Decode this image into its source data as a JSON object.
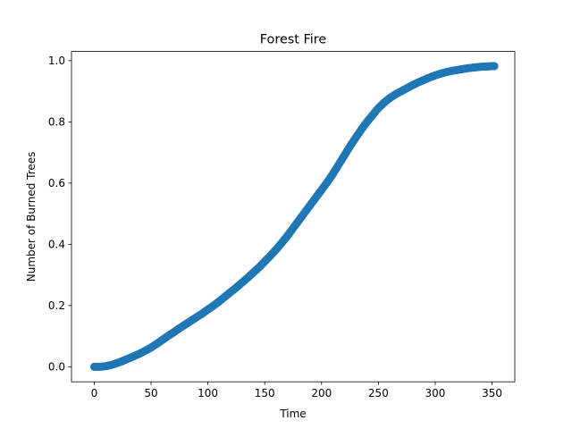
{
  "chart_data": {
    "type": "scatter",
    "title": "Forest Fire",
    "xlabel": "Time",
    "ylabel": "Number of Burned Trees",
    "xlim": [
      -20,
      370
    ],
    "ylim": [
      -0.049,
      1.03
    ],
    "xticks": [
      0,
      50,
      100,
      150,
      200,
      250,
      300,
      350
    ],
    "xtick_labels": [
      "0",
      "50",
      "100",
      "150",
      "200",
      "250",
      "300",
      "350"
    ],
    "yticks": [
      0.0,
      0.2,
      0.4,
      0.6,
      0.8,
      1.0
    ],
    "ytick_labels": [
      "0.0",
      "0.2",
      "0.4",
      "0.6",
      "0.8",
      "1.0"
    ],
    "grid": false,
    "marker_color": "#1f77b4",
    "series": [
      {
        "x": [
          0,
          5,
          10,
          15,
          20,
          25,
          30,
          35,
          40,
          45,
          50,
          55,
          60,
          65,
          70,
          75,
          80,
          85,
          90,
          95,
          100,
          105,
          110,
          115,
          120,
          125,
          130,
          135,
          140,
          145,
          150,
          155,
          160,
          165,
          170,
          175,
          180,
          185,
          190,
          195,
          200,
          205,
          210,
          215,
          220,
          225,
          230,
          235,
          240,
          245,
          250,
          255,
          260,
          265,
          270,
          275,
          280,
          285,
          290,
          295,
          300,
          305,
          310,
          315,
          320,
          325,
          330,
          335,
          340,
          345,
          350,
          352
        ],
        "y": [
          0.0,
          0.0,
          0.002,
          0.006,
          0.012,
          0.019,
          0.027,
          0.035,
          0.043,
          0.053,
          0.063,
          0.075,
          0.088,
          0.101,
          0.113,
          0.126,
          0.138,
          0.15,
          0.162,
          0.174,
          0.187,
          0.2,
          0.214,
          0.229,
          0.244,
          0.259,
          0.275,
          0.291,
          0.308,
          0.325,
          0.344,
          0.363,
          0.383,
          0.405,
          0.428,
          0.453,
          0.478,
          0.503,
          0.528,
          0.553,
          0.578,
          0.603,
          0.63,
          0.66,
          0.69,
          0.72,
          0.748,
          0.775,
          0.8,
          0.823,
          0.845,
          0.863,
          0.878,
          0.89,
          0.9,
          0.91,
          0.92,
          0.929,
          0.937,
          0.945,
          0.952,
          0.958,
          0.963,
          0.967,
          0.97,
          0.973,
          0.976,
          0.978,
          0.98,
          0.981,
          0.982,
          0.982
        ]
      }
    ]
  }
}
